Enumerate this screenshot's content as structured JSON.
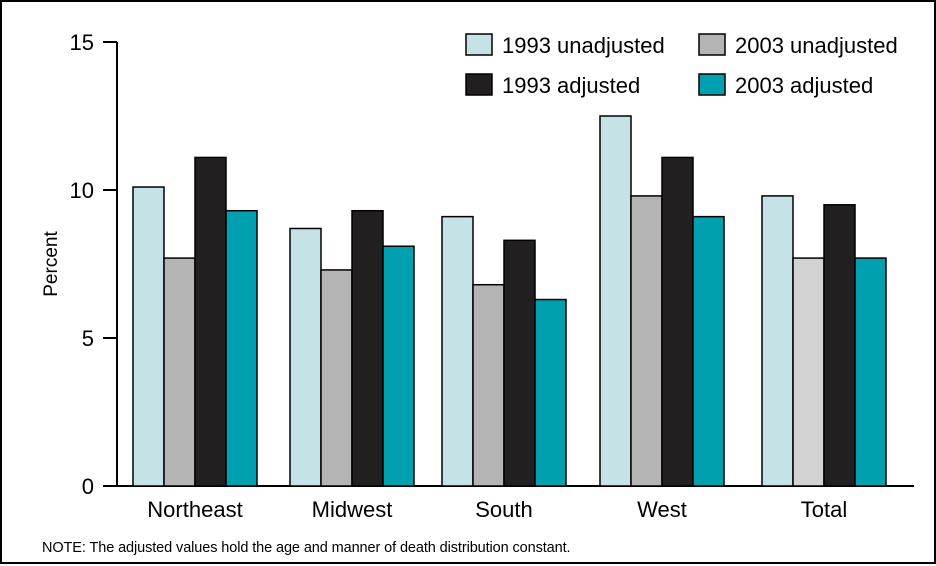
{
  "chart_data": {
    "type": "bar",
    "title": "",
    "xlabel": "",
    "ylabel": "Percent",
    "ylim": [
      0,
      15
    ],
    "yticks": [
      0,
      5,
      10,
      15
    ],
    "grid": false,
    "legend_position": "top-right",
    "categories": [
      "Northeast",
      "Midwest",
      "South",
      "West",
      "Total"
    ],
    "series": [
      {
        "name": "1993 unadjusted",
        "color": "#c5e3e6",
        "values": [
          10.1,
          8.7,
          9.1,
          12.5,
          9.8
        ]
      },
      {
        "name": "2003 unadjusted",
        "color": "#b4b4b4",
        "values": [
          7.7,
          7.3,
          6.8,
          9.8,
          7.7
        ]
      },
      {
        "name": "1993 adjusted",
        "color": "#221f20",
        "values": [
          11.1,
          9.3,
          8.3,
          11.1,
          9.5
        ]
      },
      {
        "name": "2003 adjusted",
        "color": "#00a0b0",
        "values": [
          9.3,
          8.1,
          6.3,
          9.1,
          7.7
        ]
      }
    ],
    "total_2003_unadjusted_color": "#d2d2d2",
    "note": "NOTE:  The adjusted values hold the age and manner of death distribution constant."
  }
}
